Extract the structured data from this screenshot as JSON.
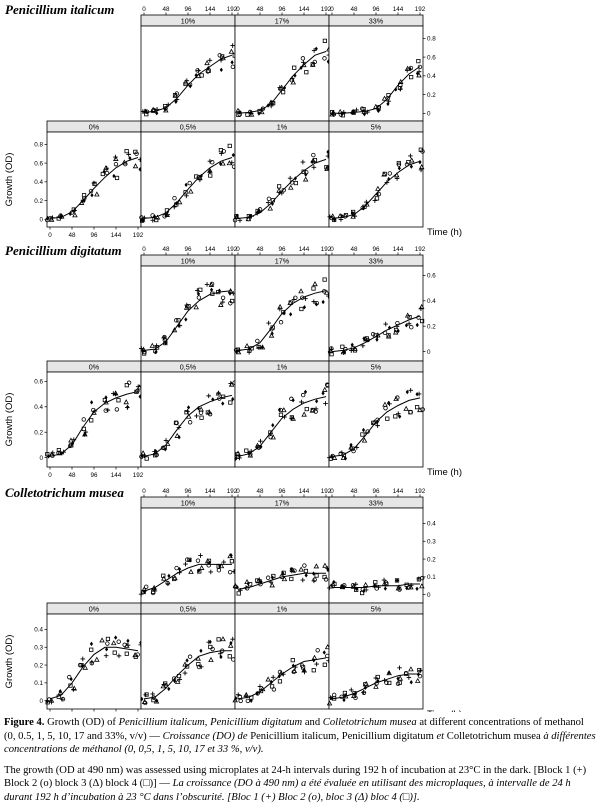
{
  "figure": {
    "x_axis_label": "Time (h)",
    "y_axis_label": "Growth (OD)",
    "x_ticks": [
      0,
      48,
      96,
      144,
      192
    ],
    "panel_order_top": [
      "10%",
      "17%",
      "33%"
    ],
    "panel_order_bottom": [
      "0%",
      "0,5%",
      "1%",
      "5%"
    ]
  },
  "chart_data": [
    {
      "type": "scatter",
      "title": "Penicillium italicum",
      "xlabel": "Time (h)",
      "ylabel": "Growth (OD)",
      "xlim": [
        0,
        192
      ],
      "ylim": [
        -0.05,
        0.9
      ],
      "yticks": [
        0,
        0.2,
        0.4,
        0.6,
        0.8
      ],
      "x": [
        0,
        24,
        48,
        72,
        96,
        120,
        144,
        168,
        192
      ],
      "panels": [
        {
          "label": "10%",
          "smooth": [
            0.01,
            0.02,
            0.06,
            0.16,
            0.3,
            0.42,
            0.5,
            0.58,
            0.62
          ]
        },
        {
          "label": "17%",
          "smooth": [
            0.0,
            0.01,
            0.03,
            0.1,
            0.25,
            0.4,
            0.52,
            0.62,
            0.66
          ]
        },
        {
          "label": "33%",
          "smooth": [
            0.0,
            0.0,
            0.01,
            0.02,
            0.05,
            0.15,
            0.3,
            0.42,
            0.5
          ]
        },
        {
          "label": "0%",
          "smooth": [
            0.01,
            0.02,
            0.08,
            0.2,
            0.33,
            0.45,
            0.55,
            0.62,
            0.66
          ]
        },
        {
          "label": "0,5%",
          "smooth": [
            0.01,
            0.02,
            0.07,
            0.18,
            0.32,
            0.45,
            0.55,
            0.62,
            0.66
          ]
        },
        {
          "label": "1%",
          "smooth": [
            0.01,
            0.02,
            0.07,
            0.17,
            0.3,
            0.42,
            0.52,
            0.6,
            0.64
          ]
        },
        {
          "label": "5%",
          "smooth": [
            0.01,
            0.02,
            0.05,
            0.14,
            0.27,
            0.4,
            0.5,
            0.58,
            0.62
          ]
        }
      ]
    },
    {
      "type": "scatter",
      "title": "Penicillium digitatum",
      "xlabel": "Time (h)",
      "ylabel": "Growth (OD)",
      "xlim": [
        0,
        192
      ],
      "ylim": [
        -0.05,
        0.65
      ],
      "yticks": [
        0,
        0.2,
        0.4,
        0.6
      ],
      "x": [
        0,
        24,
        48,
        72,
        96,
        120,
        144,
        168,
        192
      ],
      "panels": [
        {
          "label": "10%",
          "smooth": [
            0.01,
            0.02,
            0.08,
            0.2,
            0.32,
            0.4,
            0.45,
            0.47,
            0.48
          ]
        },
        {
          "label": "17%",
          "smooth": [
            0.01,
            0.02,
            0.07,
            0.18,
            0.3,
            0.38,
            0.43,
            0.46,
            0.48
          ]
        },
        {
          "label": "33%",
          "smooth": [
            0.0,
            0.01,
            0.03,
            0.07,
            0.12,
            0.17,
            0.21,
            0.25,
            0.28
          ]
        },
        {
          "label": "0%",
          "smooth": [
            0.01,
            0.03,
            0.1,
            0.24,
            0.36,
            0.43,
            0.47,
            0.5,
            0.52
          ]
        },
        {
          "label": "0,5%",
          "smooth": [
            0.01,
            0.03,
            0.1,
            0.22,
            0.33,
            0.4,
            0.44,
            0.47,
            0.49
          ]
        },
        {
          "label": "1%",
          "smooth": [
            0.01,
            0.03,
            0.09,
            0.2,
            0.31,
            0.38,
            0.43,
            0.46,
            0.48
          ]
        },
        {
          "label": "5%",
          "smooth": [
            0.01,
            0.02,
            0.07,
            0.17,
            0.28,
            0.36,
            0.41,
            0.45,
            0.47
          ]
        }
      ]
    },
    {
      "type": "scatter",
      "title": "Colletotrichum musea",
      "xlabel": "Time (h)",
      "ylabel": "Growth (OD)",
      "xlim": [
        0,
        192
      ],
      "ylim": [
        -0.03,
        0.47
      ],
      "yticks": [
        0,
        0.1,
        0.2,
        0.3,
        0.4
      ],
      "x": [
        0,
        24,
        48,
        72,
        96,
        120,
        144,
        168,
        192
      ],
      "panels": [
        {
          "label": "10%",
          "smooth": [
            0.02,
            0.04,
            0.08,
            0.12,
            0.15,
            0.17,
            0.17,
            0.17,
            0.17
          ]
        },
        {
          "label": "17%",
          "smooth": [
            0.03,
            0.04,
            0.06,
            0.08,
            0.1,
            0.11,
            0.12,
            0.12,
            0.12
          ]
        },
        {
          "label": "33%",
          "smooth": [
            0.04,
            0.04,
            0.04,
            0.04,
            0.05,
            0.05,
            0.05,
            0.06,
            0.06
          ]
        },
        {
          "label": "0%",
          "smooth": [
            0.01,
            0.03,
            0.1,
            0.19,
            0.26,
            0.3,
            0.3,
            0.29,
            0.28
          ]
        },
        {
          "label": "0,5%",
          "smooth": [
            0.01,
            0.02,
            0.07,
            0.14,
            0.2,
            0.25,
            0.27,
            0.28,
            0.28
          ]
        },
        {
          "label": "1%",
          "smooth": [
            0.01,
            0.02,
            0.05,
            0.1,
            0.15,
            0.19,
            0.22,
            0.23,
            0.24
          ]
        },
        {
          "label": "5%",
          "smooth": [
            0.01,
            0.02,
            0.04,
            0.07,
            0.1,
            0.12,
            0.14,
            0.15,
            0.15
          ]
        }
      ]
    }
  ],
  "caption": {
    "label": "Figure 4.",
    "p1_a": " Growth (OD) of ",
    "sp1": "Penicillium italicum",
    "p1_b": ", ",
    "sp2": "Penicillium digitatum",
    "p1_c": " and ",
    "sp3": "Colletotrichum musea",
    "p1_d": " at different concentrations of methanol (0, 0.5, 1, 5, 10, 17 and 33%, v/v) — ",
    "fr_a": "Croissance (DO) de ",
    "fr_sp1": "Penicillium italicum",
    "fr_b": ", ",
    "fr_sp2": "Penicillium digitatum",
    "fr_c": " et ",
    "fr_sp3": "Colletotrichum",
    "fr_d": " musea ",
    "fr_e": "à différentes concentrations de méthanol (0, 0,5, 1, 5, 10, 17 et 33 %, v/v).",
    "p2_a": "The growth (OD at 490 nm) was assessed using microplates at 24-h intervals during 192 h of incubation at 23°C in the dark. [Block 1 (+) Block 2 (o) block 3 (Δ) block 4 (□)] — ",
    "p2_fr": "La croissance (DO à 490 nm) a été évaluée en utilisant des microplaques, à intervalle de 24 h durant 192 h d’incubation à 23 °C dans l’obscurité. [Bloc 1 (+) Bloc 2 (o), bloc 3 (Δ) bloc 4 (□)]."
  }
}
